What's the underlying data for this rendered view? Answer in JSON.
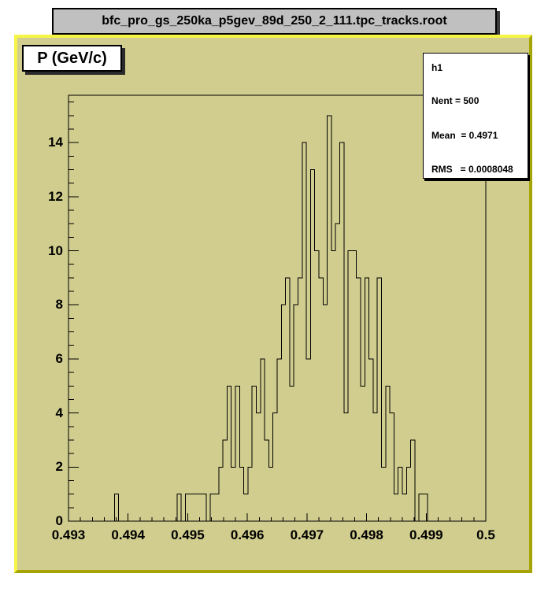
{
  "title_bar": {
    "text": "bfc_pro_gs_250ka_p5gev_89d_250_2_111.tpc_tracks.root",
    "bg": "#c0c0c0"
  },
  "canvas": {
    "bg": "#d0cd8e",
    "border_light": "#f6f446",
    "border_dark": "#a5a507",
    "line_color": "#000000"
  },
  "pave_label": {
    "text": "P (GeV/c)"
  },
  "stats_box": {
    "name": "h1",
    "entries": "Nent = 500",
    "mean": "Mean  = 0.4971",
    "rms": "RMS   = 0.0008048"
  },
  "chart_data": {
    "type": "bar",
    "subtype": "histogram-step-outline",
    "title": "bfc_pro_gs_250ka_p5gev_89d_250_2_111.tpc_tracks.root",
    "series_label": "P (GeV/c)",
    "histogram_name": "h1",
    "stats": {
      "entries": 500,
      "mean": 0.4971,
      "rms": 0.0008048
    },
    "x_min": 0.493,
    "x_max": 0.5,
    "n_bins": 100,
    "y_min": 0,
    "y_max": 15.75,
    "grid": false,
    "legend_position": "none",
    "x_ticks": [
      {
        "label": "0.493",
        "value": 0.493
      },
      {
        "label": "0.494",
        "value": 0.494
      },
      {
        "label": "0.495",
        "value": 0.495
      },
      {
        "label": "0.496",
        "value": 0.496
      },
      {
        "label": "0.497",
        "value": 0.497
      },
      {
        "label": "0.498",
        "value": 0.498
      },
      {
        "label": "0.499",
        "value": 0.499
      },
      {
        "label": "0.5",
        "value": 0.5
      }
    ],
    "x_minor_tick_step": 0.0002,
    "y_ticks": [
      {
        "label": "0",
        "value": 0
      },
      {
        "label": "2",
        "value": 2
      },
      {
        "label": "4",
        "value": 4
      },
      {
        "label": "6",
        "value": 6
      },
      {
        "label": "8",
        "value": 8
      },
      {
        "label": "10",
        "value": 10
      },
      {
        "label": "12",
        "value": 12
      },
      {
        "label": "14",
        "value": 14
      }
    ],
    "y_minor_tick_step": 0.5,
    "bin_contents": [
      0,
      0,
      0,
      0,
      0,
      0,
      0,
      0,
      0,
      0,
      0,
      1,
      0,
      0,
      0,
      0,
      0,
      0,
      0,
      0,
      0,
      0,
      0,
      0,
      0,
      0,
      1,
      0,
      1,
      1,
      1,
      1,
      1,
      0,
      1,
      1,
      2,
      3,
      5,
      2,
      5,
      2,
      1,
      2,
      5,
      4,
      6,
      3,
      2,
      4,
      6,
      8,
      9,
      5,
      8,
      9,
      14,
      6,
      13,
      10,
      9,
      8,
      15,
      10,
      11,
      14,
      4,
      10,
      10,
      9,
      5,
      9,
      6,
      4,
      9,
      2,
      5,
      4,
      1,
      2,
      1,
      2,
      3,
      0,
      1,
      1,
      0,
      0,
      0,
      0,
      0,
      0,
      0,
      0,
      0,
      0,
      0,
      0,
      0,
      0
    ]
  }
}
